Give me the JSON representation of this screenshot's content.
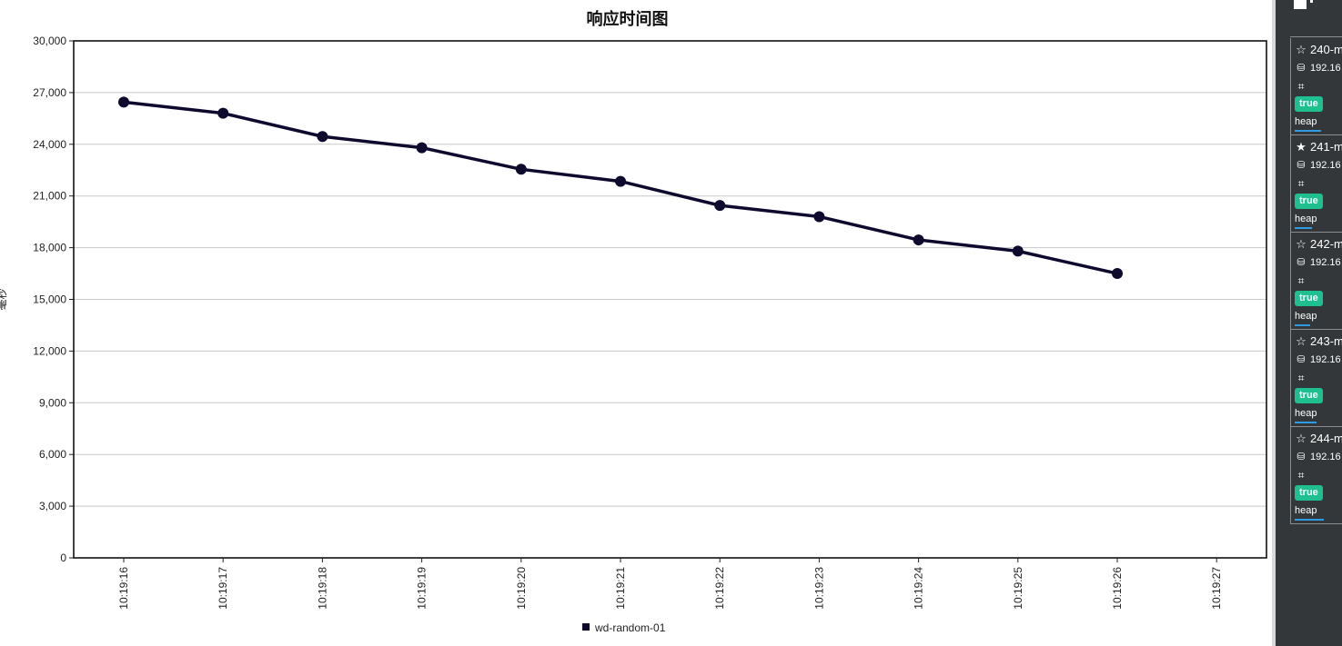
{
  "chart_data": {
    "type": "line",
    "title": "响应时间图",
    "ylabel": "毫秒",
    "xlabel": "",
    "ylim": [
      0,
      30000
    ],
    "yticks": [
      "0",
      "3,000",
      "6,000",
      "9,000",
      "12,000",
      "15,000",
      "18,000",
      "21,000",
      "24,000",
      "27,000",
      "30,000"
    ],
    "categories": [
      "10:19:16",
      "10:19:17",
      "10:19:18",
      "10:19:19",
      "10:19:20",
      "10:19:21",
      "10:19:22",
      "10:19:23",
      "10:19:24",
      "10:19:25",
      "10:19:26",
      "10:19:27"
    ],
    "series": [
      {
        "name": "wd-random-01",
        "color": "#0d0a2e",
        "values": [
          26450,
          25800,
          24450,
          23800,
          22550,
          21850,
          20450,
          19800,
          18450,
          17800,
          16500,
          null
        ]
      }
    ],
    "grid": true,
    "legend": "bottom-center"
  },
  "side_panel": {
    "nodes": [
      {
        "name": "240-m",
        "ip": "192.16",
        "status": "true",
        "heap_label": "heap",
        "heap_fraction": 0.85,
        "starred": false
      },
      {
        "name": "241-m",
        "ip": "192.16",
        "status": "true",
        "heap_label": "heap",
        "heap_fraction": 0.55,
        "starred": true
      },
      {
        "name": "242-m",
        "ip": "192.16",
        "status": "true",
        "heap_label": "heap",
        "heap_fraction": 0.5,
        "starred": false
      },
      {
        "name": "243-m",
        "ip": "192.16",
        "status": "true",
        "heap_label": "heap",
        "heap_fraction": 0.7,
        "starred": false
      },
      {
        "name": "244-m",
        "ip": "192.16",
        "status": "true",
        "heap_label": "heap",
        "heap_fraction": 0.95,
        "starred": false
      }
    ]
  }
}
